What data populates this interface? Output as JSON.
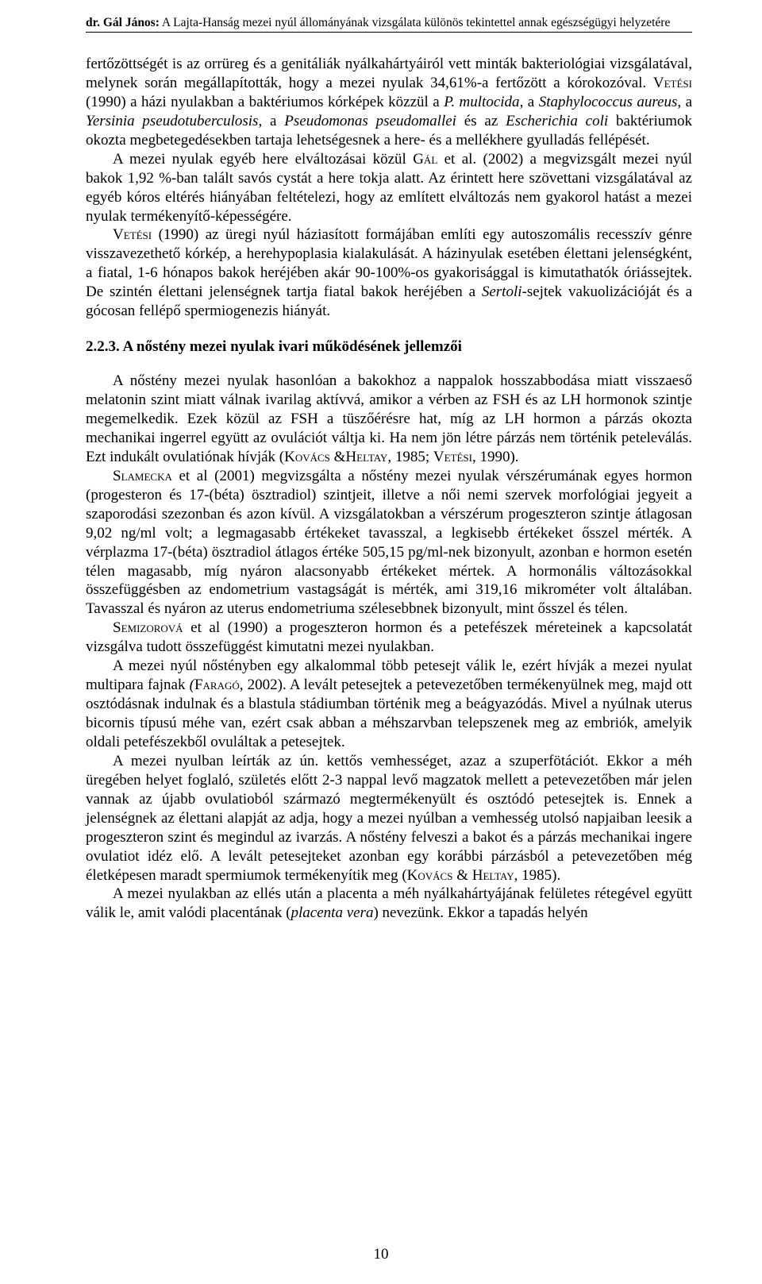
{
  "runningHead": {
    "authorPrefix": "dr. Gál János:",
    "title": "  A Lajta-Hanság  mezei nyúl  állományának vizsgálata különös tekintettel annak egészségügyi helyzetére"
  },
  "paragraphs": {
    "p1_a": "fertőzöttségét is az orrüreg és a genitáliák nyálkahártyáiról vett minták bakteriológiai vizsgálatával, melynek során megállapították, hogy a mezei nyulak 34,61%-a fertőzött a kórokozóval. ",
    "p1_b": " (1990) a házi nyulakban a baktériumos kórképek közzül a ",
    "p1_c": ", a ",
    "p1_d": ", a ",
    "p1_e": ", a ",
    "p1_f": " és az ",
    "p1_g": " baktériumok okozta megbetegedésekben tartaja lehetségesnek a here- és a mellékhere gyulladás fellépését.",
    "p2_a": "A mezei nyulak egyéb here elváltozásai közül ",
    "p2_b": " et al. (2002) a megvizsgált mezei nyúl bakok 1,92 %-ban talált savós cystát a here tokja alatt. Az érintett here szövettani vizsgálatával az egyéb kóros eltérés hiányában feltételezi, hogy az említett elváltozás nem gyakorol hatást a mezei nyulak termékenyítő-képességére.",
    "p3_a": " (1990) az üregi nyúl háziasított formájában említi egy autoszomális recesszív génre visszavezethető kórkép, a herehypoplasia kialakulását. A házinyulak esetében élettani jelenségként, a fiatal, 1-6 hónapos bakok heréjében akár 90-100%-os gyakorisággal is kimutathatók óriássejtek. De szintén élettani jelenségnek tartja fiatal bakok heréjében a ",
    "p3_b": "-sejtek vakuolizációját és a gócosan fellépő spermiogenezis hiányát.",
    "sectionHeading": "2.2.3. A nőstény mezei nyulak ivari működésének jellemzői",
    "p4_a": "A nőstény mezei nyulak hasonlóan a bakokhoz a nappalok hosszabbodása miatt visszaeső melatonin szint miatt válnak ivarilag aktívvá, amikor a vérben az FSH és az LH hormonok szintje megemelkedik. Ezek közül az FSH a tüszőérésre hat, míg az LH hormon a párzás okozta mechanikai ingerrel együtt az ovulációt váltja ki. Ha nem jön létre párzás nem történik peteleválás. Ezt indukált ovulatiónak hívják (",
    "p4_b": ", 1985; ",
    "p4_c": ", 1990).",
    "p5_a": " et al (2001) megvizsgálta a nőstény mezei nyulak vérszérumának egyes hormon (progesteron és 17-(béta) ösztradiol) szintjeit, illetve a női nemi szervek morfológiai jegyeit a szaporodási szezonban és azon kívül. A vizsgálatokban a vérszérum progeszteron szintje átlagosan 9,02 ng/ml volt; a legmagasabb értékeket tavasszal, a legkisebb értékeket ősszel mérték. A vérplazma 17-(béta) ösztradiol átlagos értéke 505,15 pg/ml-nek bizonyult, azonban e hormon esetén télen magasabb, míg nyáron alacsonyabb értékeket mértek. A hormonális változásokkal összefüggésben az endometrium vastagságát is mérték, ami 319,16 mikrométer volt általában. Tavasszal és nyáron az uterus endometriuma szélesebbnek bizonyult, mint ősszel és télen.",
    "p6_a": " et al (1990) a progeszteron hormon és a petefészek méreteinek a kapcsolatát vizsgálva tudott összefüggést kimutatni mezei nyulakban.",
    "p7_a": "A mezei nyúl nőstényben egy alkalommal több petesejt válik le, ezért hívják a mezei nyulat multipara fajnak ",
    "p7_b": ", 2002). A levált petesejtek a petevezetőben termékenyülnek meg, majd ott osztódásnak indulnak és a blastula stádiumban történik meg a beágyazódás. Mivel a nyúlnak uterus bicornis típusú méhe van, ezért csak abban a méhszarvban telepszenek meg az embriók, amelyik oldali petefészekből ovuláltak a petesejtek.",
    "p8_a": "A mezei nyulban leírták az ún. kettős vemhességet, azaz a szuperfötációt. Ekkor a méh üregében helyet foglaló, születés előtt 2-3 nappal levő magzatok mellett a petevezetőben már jelen vannak az újabb ovulatioból származó megtermékenyült és osztódó petesejtek is. Ennek a jelenségnek az élettani alapját az adja, hogy a mezei nyúlban a vemhesség utolsó napjaiban leesik a progeszteron szint és megindul az ivarzás. A nőstény felveszi a bakot és a párzás mechanikai ingere ovulatiot idéz elő. A levált petesejteket azonban egy korábbi párzásból a petevezetőben még életképesen maradt spermiumok termékenyítik meg (",
    "p8_b": ", 1985).",
    "p9_a": "A mezei nyulakban az ellés után a placenta a méh nyálkahártyájának felületes rétegével együtt válik le, amit valódi placentának (",
    "p9_b": ") nevezünk. Ekkor a tapadás helyén"
  },
  "smallcaps": {
    "vetesi": "Vetési",
    "gal": "Gál",
    "kovacsheltay": "Kovács &Heltay",
    "slamecka": "Slamecka",
    "semizorova": "Semizorová",
    "farago": "Faragó",
    "kovacs_amp_heltay": "Kovács & Heltay"
  },
  "italics": {
    "p_multocida": "P. multocida",
    "staph": "Staphylococcus aureus",
    "yersinia": "Yersinia pseudotuberculosis",
    "pseudomonas": "Pseudomonas pseudomallei",
    "ecoli": "Escherichia coli",
    "sertoli": "Sertoli",
    "farago_paren": "(",
    "placenta_vera": "placenta vera"
  },
  "pageNumber": "10"
}
